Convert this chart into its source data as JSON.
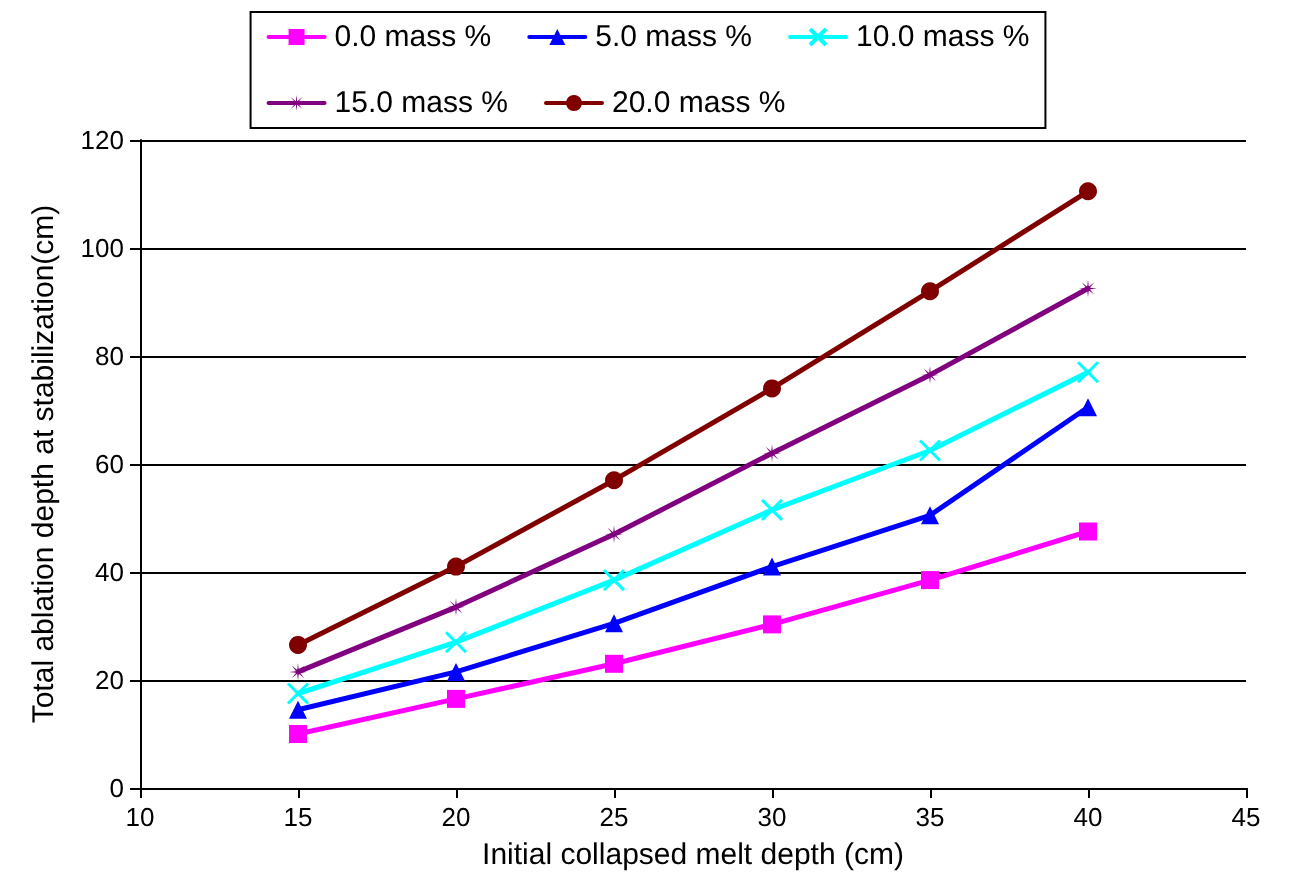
{
  "chart_data": {
    "type": "line",
    "xlabel": "Initial collapsed melt depth (cm)",
    "ylabel": "Total ablation depth at stabilization(cm)",
    "x": [
      15,
      20,
      25,
      30,
      35,
      40
    ],
    "series": [
      {
        "name": "0.0 mass %",
        "color": "#ff00ff",
        "marker": "square",
        "values": [
          10,
          16.5,
          23,
          30.3,
          38.5,
          47.5
        ]
      },
      {
        "name": "5.0 mass %",
        "color": "#0000ff",
        "marker": "triangle",
        "values": [
          14.5,
          21.5,
          30.5,
          41,
          50.5,
          70.5
        ]
      },
      {
        "name": "10.0 mass %",
        "color": "#00ffff",
        "marker": "cross",
        "values": [
          17.5,
          27,
          38.5,
          51.5,
          62.5,
          77
        ]
      },
      {
        "name": "15.0 mass %",
        "color": "#800080",
        "marker": "star",
        "values": [
          21.5,
          33.5,
          47,
          62,
          76.5,
          92.5
        ]
      },
      {
        "name": "20.0 mass %",
        "color": "#800000",
        "marker": "circle",
        "values": [
          26.5,
          41,
          57,
          74,
          92,
          110.5
        ]
      }
    ],
    "xlim": [
      10,
      45
    ],
    "xticks": [
      10,
      15,
      20,
      25,
      30,
      35,
      40,
      45
    ],
    "ylim": [
      0,
      120
    ],
    "yticks": [
      0,
      20,
      40,
      60,
      80,
      100,
      120
    ],
    "grid": "y",
    "legend": "top",
    "line_style": "solid"
  }
}
